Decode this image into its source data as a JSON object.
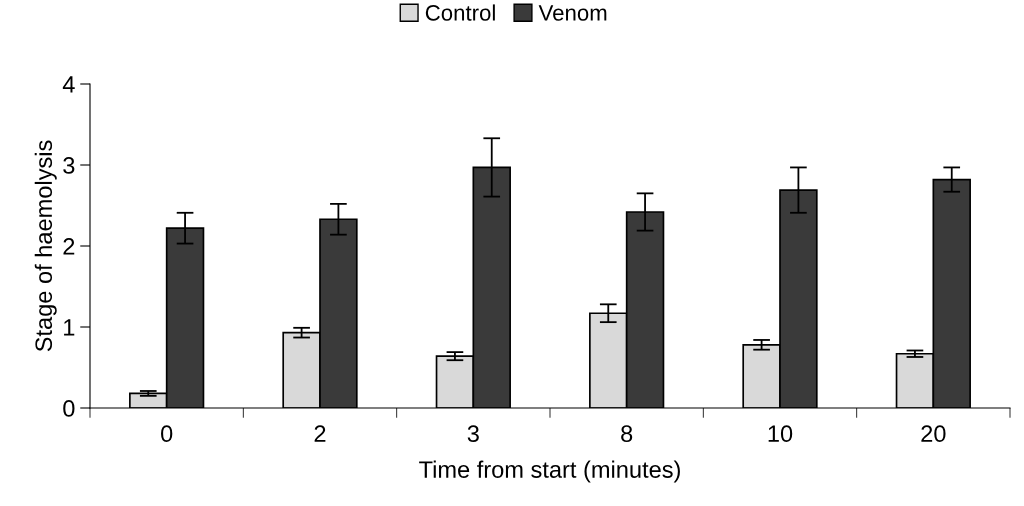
{
  "chart_data": {
    "type": "bar",
    "xlabel": "Time from start (minutes)",
    "ylabel": "Stage of haemolysis",
    "categories": [
      "0",
      "2",
      "3",
      "8",
      "10",
      "20"
    ],
    "series": [
      {
        "name": "Control",
        "color": "#d9d9d9",
        "values": [
          0.18,
          0.93,
          0.64,
          1.17,
          0.78,
          0.67
        ],
        "errors": [
          0.03,
          0.06,
          0.05,
          0.11,
          0.06,
          0.04
        ]
      },
      {
        "name": "Venom",
        "color": "#3a3a3a",
        "values": [
          2.22,
          2.33,
          2.97,
          2.42,
          2.69,
          2.82
        ],
        "errors": [
          0.19,
          0.19,
          0.36,
          0.23,
          0.28,
          0.15
        ]
      }
    ],
    "ylim": [
      0,
      4
    ],
    "yticks": [
      0,
      1,
      2,
      3,
      4
    ],
    "grid": false,
    "legend": "top"
  }
}
